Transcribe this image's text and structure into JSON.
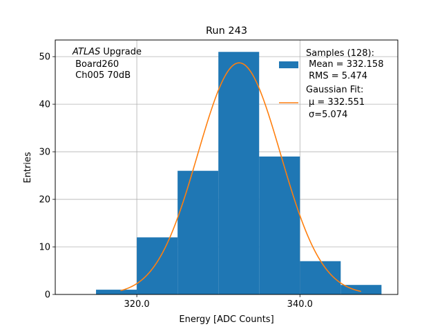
{
  "chart_data": {
    "type": "bar",
    "title": "Run 243",
    "xlabel": "Energy [ADC Counts]",
    "ylabel": "Entries",
    "xlim": [
      310.0,
      352.0
    ],
    "ylim": [
      0,
      53.5
    ],
    "x_ticks": [
      320.0,
      340.0
    ],
    "x_tick_labels": [
      "320.0",
      "340.0"
    ],
    "y_ticks": [
      0,
      10,
      20,
      30,
      40,
      50
    ],
    "y_tick_labels": [
      "0",
      "10",
      "20",
      "30",
      "40",
      "50"
    ],
    "grid": true,
    "legend_position": "top-right",
    "bin_edges": [
      315.0,
      320.0,
      325.0,
      330.0,
      335.0,
      340.0,
      345.0,
      350.0
    ],
    "bin_counts": [
      1,
      12,
      26,
      51,
      29,
      7,
      2
    ],
    "histogram_color": "#1f77b4",
    "fit": {
      "type": "gaussian",
      "mu": 332.551,
      "sigma": 5.074,
      "amplitude": 48.7,
      "x_range": [
        318.0,
        347.5
      ],
      "color": "#ff7f0e"
    },
    "annotation": {
      "italic": "ATLAS",
      "lines": [
        " Upgrade",
        " Board260",
        " Ch005 70dB"
      ]
    },
    "legend": {
      "histogram_lines": [
        "Samples (128):",
        " Mean = 332.158",
        " RMS = 5.474"
      ],
      "fit_lines": [
        "Gaussian Fit:",
        "μ = 332.551",
        "σ=5.074"
      ]
    }
  }
}
